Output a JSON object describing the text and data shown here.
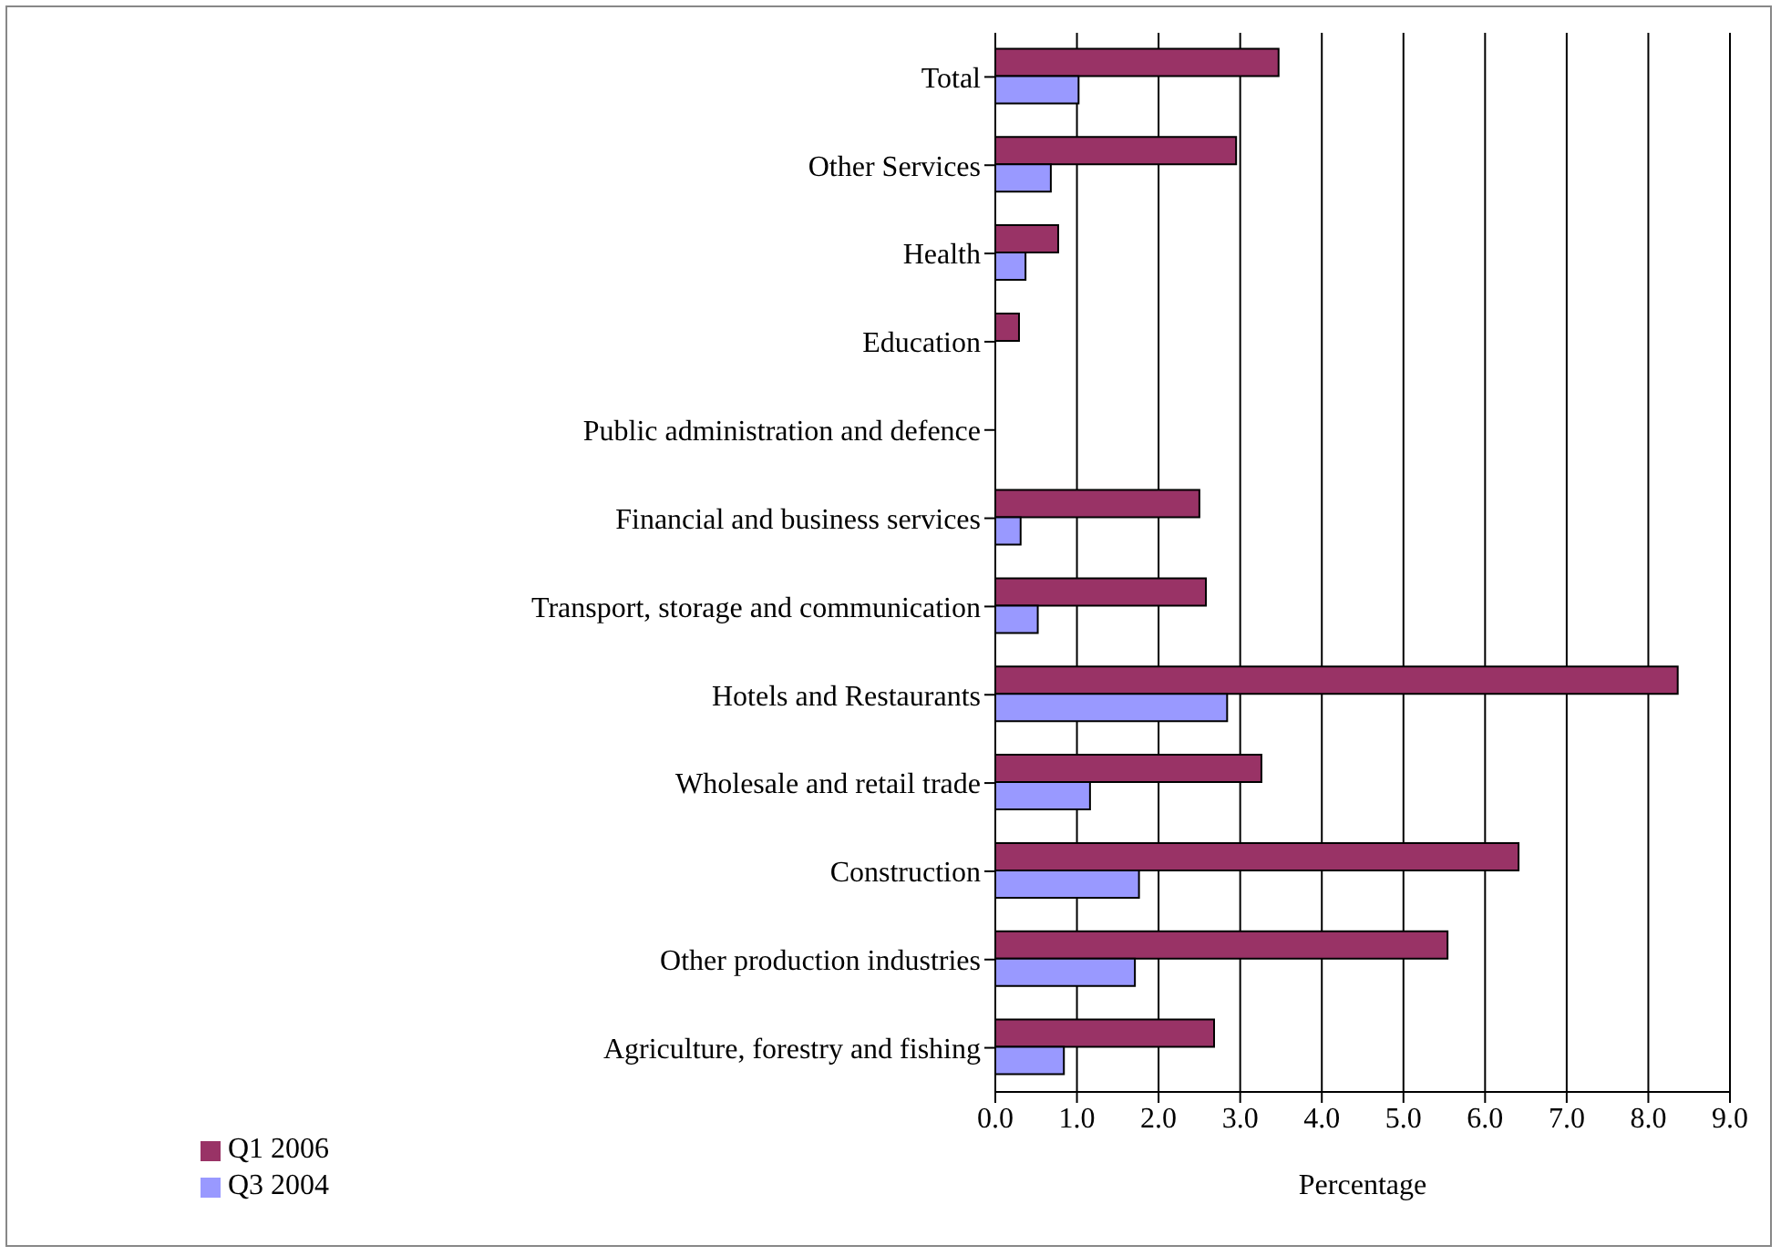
{
  "chart_data": {
    "type": "bar",
    "orientation": "horizontal",
    "xlabel": "Percentage",
    "categories": [
      "Total",
      "Other Services",
      "Health",
      "Education",
      "Public administration and defence",
      "Financial and business services",
      "Transport, storage and communication",
      "Hotels and Restaurants",
      "Wholesale and retail trade",
      "Construction",
      "Other production industries",
      "Agriculture, forestry and fishing"
    ],
    "series": [
      {
        "name": "Q1 2006",
        "color": "#993366",
        "values": [
          3.47,
          2.95,
          0.77,
          0.29,
          null,
          2.5,
          2.58,
          8.36,
          3.26,
          6.41,
          5.54,
          2.68
        ]
      },
      {
        "name": "Q3 2004",
        "color": "#9999ff",
        "values": [
          1.02,
          0.68,
          0.37,
          null,
          null,
          0.31,
          0.52,
          2.84,
          1.16,
          1.76,
          1.71,
          0.84
        ]
      }
    ],
    "xlim": [
      0,
      9
    ],
    "xticks": [
      {
        "value": 0,
        "label": "0.0"
      },
      {
        "value": 1,
        "label": "1.0"
      },
      {
        "value": 2,
        "label": "2.0"
      },
      {
        "value": 3,
        "label": "3.0"
      },
      {
        "value": 4,
        "label": "4.0"
      },
      {
        "value": 5,
        "label": "5.0"
      },
      {
        "value": 6,
        "label": "6.0"
      },
      {
        "value": 7,
        "label": "7.0"
      },
      {
        "value": 8,
        "label": "8.0"
      },
      {
        "value": 9,
        "label": "9.0"
      }
    ],
    "grid": "x",
    "legend": "bottom left"
  }
}
